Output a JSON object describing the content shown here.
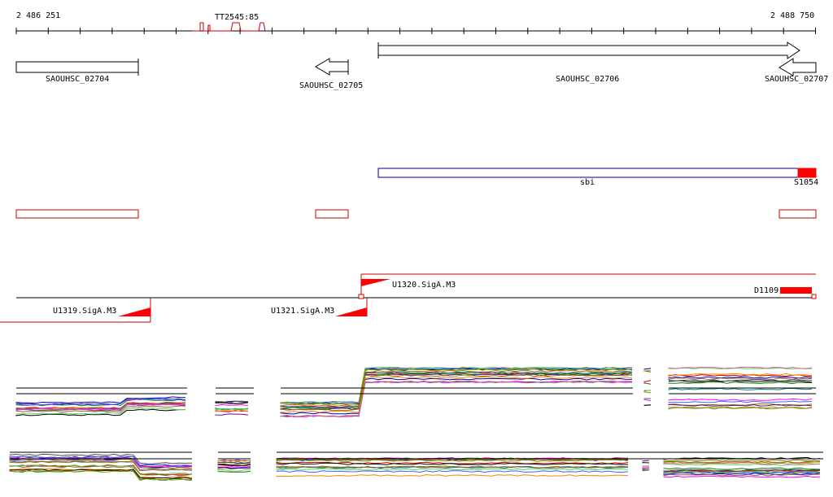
{
  "ruler": {
    "start_label": "2 486 251",
    "end_label": "2 488 750",
    "marker_label": "TT2545:85"
  },
  "genes": [
    {
      "id": "gene-saouhsc-02704",
      "label": "SAOUHSC_02704",
      "strand": "none"
    },
    {
      "id": "gene-saouhsc-02705",
      "label": "SAOUHSC_02705",
      "strand": "reverse"
    },
    {
      "id": "gene-saouhsc-02706",
      "label": "SAOUHSC_02706",
      "strand": "forward"
    },
    {
      "id": "gene-saouhsc-02707",
      "label": "SAOUHSC_02707",
      "strand": "reverse"
    }
  ],
  "features": {
    "sbi_label": "sbi",
    "s1054_label": "S1054"
  },
  "transcripts": {
    "u1320": "U1320.SigA.M3",
    "u1319": "U1319.SigA.M3",
    "u1321": "U1321.SigA.M3",
    "d1109": "D1109"
  },
  "colors": {
    "feature_red": "#ff0000",
    "outline_red": "#cc0000",
    "sbi_blue": "#000080",
    "axis": "#000000"
  }
}
